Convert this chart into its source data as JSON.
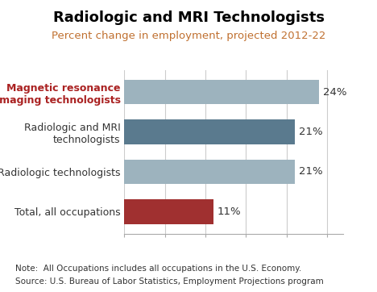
{
  "title": "Radiologic and MRI Technologists",
  "subtitle": "Percent change in employment, projected 2012-22",
  "categories": [
    "Total, all occupations",
    "Radiologic technologists",
    "Radiologic and MRI\ntechnologists",
    "Magnetic resonance\nimaging technologists"
  ],
  "values": [
    11,
    21,
    21,
    24
  ],
  "bar_colors": [
    "#a03030",
    "#9db3be",
    "#5a7a8e",
    "#9db3be"
  ],
  "xlim": [
    0,
    27
  ],
  "note_line1": "Note:  All Occupations includes all occupations in the U.S. Economy.",
  "note_line2": "Source: U.S. Bureau of Labor Statistics, Employment Projections program",
  "background_color": "#ffffff",
  "plot_bg_color": "#ffffff",
  "title_fontsize": 13,
  "subtitle_fontsize": 9.5,
  "label_fontsize": 9,
  "value_fontsize": 9.5,
  "note_fontsize": 7.5,
  "title_color": "#000000",
  "subtitle_color": "#c07030",
  "label_color_highlight": "#aa2222",
  "label_color_normal": "#333333",
  "note_color": "#333333",
  "grid_color": "#cccccc",
  "spine_color": "#aaaaaa"
}
